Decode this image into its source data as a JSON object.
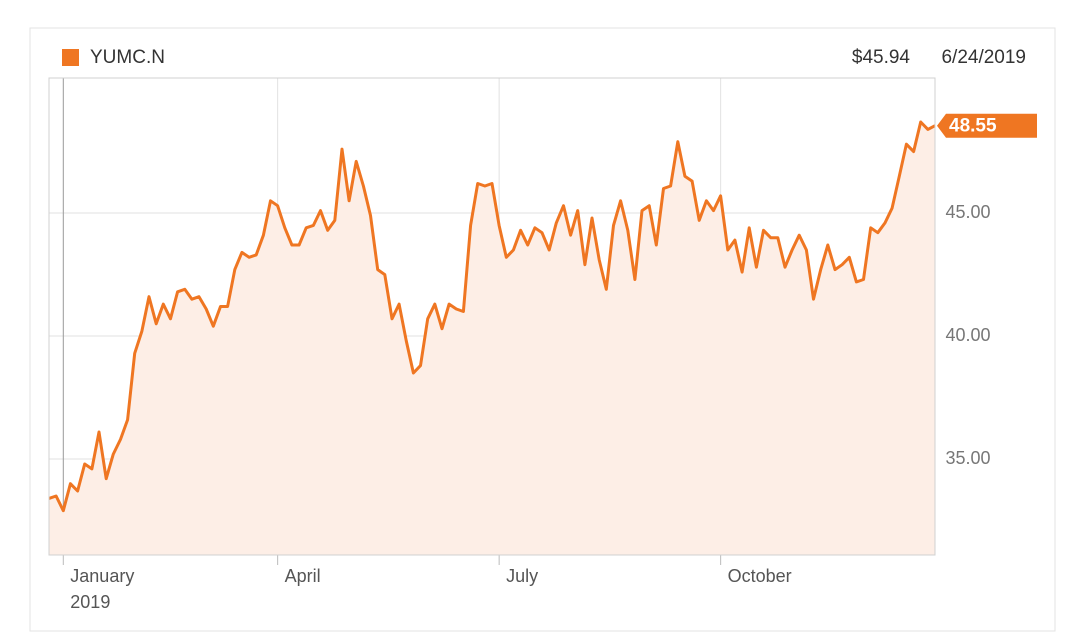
{
  "chart_data": {
    "type": "line",
    "series": [
      {
        "name": "YUMC.N",
        "color": "#ef7622",
        "values": [
          33.4,
          33.5,
          32.9,
          34.0,
          33.7,
          34.8,
          34.6,
          36.1,
          34.2,
          35.2,
          35.8,
          36.6,
          39.3,
          40.2,
          41.6,
          40.5,
          41.3,
          40.7,
          41.8,
          41.9,
          41.5,
          41.6,
          41.1,
          40.4,
          41.2,
          41.2,
          42.7,
          43.4,
          43.2,
          43.3,
          44.1,
          45.5,
          45.3,
          44.4,
          43.7,
          43.7,
          44.4,
          44.5,
          45.1,
          44.3,
          44.7,
          47.6,
          45.5,
          47.1,
          46.1,
          44.9,
          42.7,
          42.5,
          40.7,
          41.3,
          39.8,
          38.5,
          38.8,
          40.7,
          41.3,
          40.3,
          41.3,
          41.1,
          41.0,
          44.5,
          46.2,
          46.1,
          46.2,
          44.5,
          43.2,
          43.5,
          44.3,
          43.7,
          44.4,
          44.2,
          43.5,
          44.6,
          45.3,
          44.1,
          45.1,
          42.9,
          44.8,
          43.1,
          41.9,
          44.5,
          45.5,
          44.3,
          42.3,
          45.1,
          45.3,
          43.7,
          46.0,
          46.1,
          47.9,
          46.5,
          46.3,
          44.7,
          45.5,
          45.1,
          45.7,
          43.5,
          43.9,
          42.6,
          44.4,
          42.8,
          44.3,
          44.0,
          44.0,
          42.8,
          43.5,
          44.1,
          43.5,
          41.5,
          42.7,
          43.7,
          42.7,
          42.9,
          43.2,
          42.2,
          42.3,
          44.4,
          44.2,
          44.6,
          45.2,
          46.5,
          47.8,
          47.5,
          48.7,
          48.4,
          48.55
        ]
      }
    ],
    "categories": [
      null,
      null,
      "January 2019",
      null,
      null,
      null,
      null,
      null,
      null,
      null,
      null,
      null,
      null,
      null,
      null,
      null,
      null,
      null,
      null,
      null,
      null,
      null,
      null,
      null,
      null,
      null,
      null,
      null,
      null,
      null,
      null,
      null,
      "April",
      null,
      null,
      null,
      null,
      null,
      null,
      null,
      null,
      null,
      null,
      null,
      null,
      null,
      null,
      null,
      null,
      null,
      null,
      null,
      null,
      null,
      null,
      null,
      null,
      null,
      null,
      null,
      null,
      null,
      null,
      "July",
      null,
      null,
      null,
      null,
      null,
      null,
      null,
      null,
      null,
      null,
      null,
      null,
      null,
      null,
      null,
      null,
      null,
      null,
      null,
      null,
      null,
      null,
      null,
      null,
      null,
      null,
      null,
      null,
      null,
      null,
      "October",
      null,
      null,
      null,
      null,
      null,
      null,
      null,
      null,
      null,
      null,
      null,
      null,
      null,
      null,
      null,
      null,
      null,
      null,
      null,
      null,
      null,
      null,
      null,
      null,
      null,
      null,
      null,
      null,
      null,
      null
    ],
    "ylim": [
      31.1,
      50.49
    ],
    "yticks": [
      {
        "value": 35,
        "label": "35.00"
      },
      {
        "value": 40,
        "label": "40.00"
      },
      {
        "value": 45,
        "label": "45.00"
      }
    ],
    "grid": true,
    "price_label": "$45.94",
    "date_label": "6/24/2019"
  }
}
